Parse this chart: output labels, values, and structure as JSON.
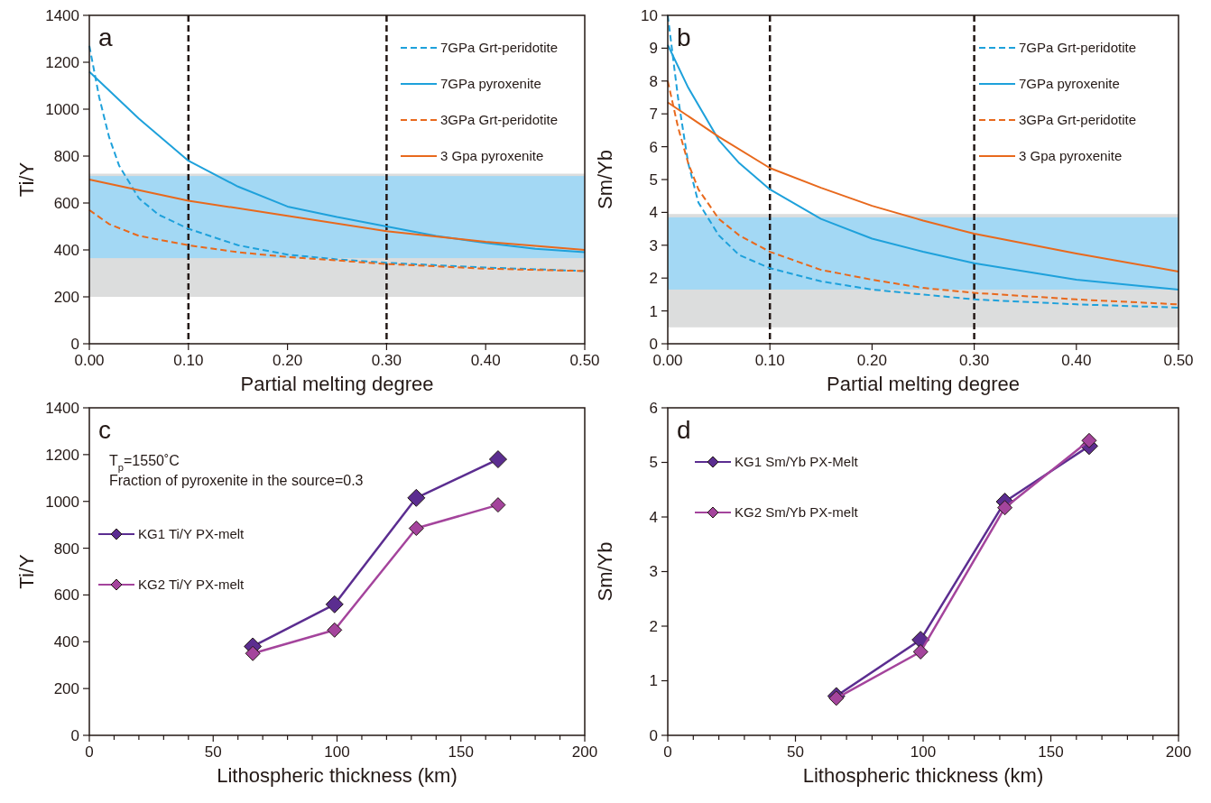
{
  "chart_data": [
    {
      "type": "line",
      "ylabel": "Ti/Y",
      "xlabel": "Partial melting degree",
      "annotations": [
        "a"
      ],
      "legend": "top right",
      "grid": false,
      "marker": "none",
      "xlim": [
        0,
        0.5
      ],
      "xticks": [
        {
          "value": 0,
          "label": "0.00"
        },
        {
          "value": 0.1,
          "label": "0.10"
        },
        {
          "value": 0.2,
          "label": "0.20"
        },
        {
          "value": 0.3,
          "label": "0.30"
        },
        {
          "value": 0.4,
          "label": "0.40"
        },
        {
          "value": 0.5,
          "label": "0.50"
        }
      ],
      "ylim": [
        0,
        1400
      ],
      "yticks": [
        0,
        200,
        400,
        600,
        800,
        1000,
        1200,
        1400
      ],
      "bands": [
        {
          "axis": "y",
          "from": 200,
          "to": 725,
          "color": "#dcdddd"
        },
        {
          "axis": "y",
          "from": 365,
          "to": 715,
          "color": "#a3d8f4"
        }
      ],
      "ref_lines": [
        {
          "axis": "x",
          "value": 0.1,
          "color": "#231815",
          "line_style": "dashed"
        },
        {
          "axis": "x",
          "value": 0.3,
          "color": "#231815",
          "line_style": "dashed"
        }
      ],
      "series": [
        {
          "name": "7GPa Grt-peridotite",
          "color": "#1ea1db",
          "line_style": "dashed",
          "x": [
            0,
            0.01,
            0.02,
            0.03,
            0.05,
            0.07,
            0.1,
            0.15,
            0.2,
            0.25,
            0.3,
            0.4,
            0.5
          ],
          "values": [
            1270,
            1050,
            880,
            760,
            620,
            550,
            490,
            420,
            380,
            360,
            345,
            325,
            310
          ]
        },
        {
          "name": "7GPa pyroxenite",
          "color": "#1ea1db",
          "line_style": "solid",
          "x": [
            0,
            0.05,
            0.1,
            0.15,
            0.2,
            0.25,
            0.3,
            0.35,
            0.4,
            0.45,
            0.5
          ],
          "values": [
            1160,
            960,
            780,
            670,
            585,
            540,
            500,
            460,
            430,
            405,
            390
          ]
        },
        {
          "name": "3GPa Grt-peridotite",
          "color": "#e8691d",
          "line_style": "dashed",
          "x": [
            0,
            0.02,
            0.05,
            0.1,
            0.15,
            0.2,
            0.25,
            0.3,
            0.4,
            0.5
          ],
          "values": [
            570,
            510,
            460,
            420,
            390,
            370,
            355,
            340,
            320,
            310
          ]
        },
        {
          "name": "3 Gpa pyroxenite",
          "color": "#e8691d",
          "line_style": "solid",
          "x": [
            0,
            0.1,
            0.2,
            0.3,
            0.4,
            0.5
          ],
          "values": [
            700,
            610,
            545,
            480,
            435,
            400
          ]
        }
      ]
    },
    {
      "type": "line",
      "ylabel": "Sm/Yb",
      "xlabel": "Partial melting degree",
      "annotations": [
        "b"
      ],
      "legend": "top right",
      "grid": false,
      "marker": "none",
      "xlim": [
        0,
        0.5
      ],
      "xticks": [
        {
          "value": 0,
          "label": "0.00"
        },
        {
          "value": 0.1,
          "label": "0.10"
        },
        {
          "value": 0.2,
          "label": "0.20"
        },
        {
          "value": 0.3,
          "label": "0.30"
        },
        {
          "value": 0.4,
          "label": "0.40"
        },
        {
          "value": 0.5,
          "label": "0.50"
        }
      ],
      "ylim": [
        0,
        10
      ],
      "yticks": [
        0,
        1,
        2,
        3,
        4,
        5,
        6,
        7,
        8,
        9,
        10
      ],
      "bands": [
        {
          "axis": "y",
          "from": 0.5,
          "to": 3.95,
          "color": "#dcdddd"
        },
        {
          "axis": "y",
          "from": 1.65,
          "to": 3.85,
          "color": "#a3d8f4"
        }
      ],
      "ref_lines": [
        {
          "axis": "x",
          "value": 0.1,
          "color": "#231815",
          "line_style": "dashed"
        },
        {
          "axis": "x",
          "value": 0.3,
          "color": "#231815",
          "line_style": "dashed"
        }
      ],
      "series": [
        {
          "name": "7GPa Grt-peridotite",
          "color": "#1ea1db",
          "line_style": "dashed",
          "x": [
            0,
            0.01,
            0.02,
            0.03,
            0.05,
            0.07,
            0.1,
            0.15,
            0.2,
            0.25,
            0.3,
            0.4,
            0.5
          ],
          "values": [
            10,
            7.5,
            5.5,
            4.3,
            3.3,
            2.7,
            2.3,
            1.9,
            1.65,
            1.5,
            1.35,
            1.2,
            1.1
          ]
        },
        {
          "name": "7GPa pyroxenite",
          "color": "#1ea1db",
          "line_style": "solid",
          "x": [
            0,
            0.02,
            0.05,
            0.07,
            0.1,
            0.15,
            0.2,
            0.25,
            0.3,
            0.4,
            0.5
          ],
          "values": [
            9.1,
            7.8,
            6.2,
            5.5,
            4.7,
            3.8,
            3.2,
            2.8,
            2.45,
            1.95,
            1.65
          ]
        },
        {
          "name": "3GPa Grt-peridotite",
          "color": "#e8691d",
          "line_style": "dashed",
          "x": [
            0,
            0.01,
            0.02,
            0.03,
            0.05,
            0.07,
            0.1,
            0.15,
            0.2,
            0.25,
            0.3,
            0.4,
            0.5
          ],
          "values": [
            8,
            6.6,
            5.5,
            4.7,
            3.8,
            3.3,
            2.8,
            2.25,
            1.95,
            1.7,
            1.55,
            1.35,
            1.2
          ]
        },
        {
          "name": "3 Gpa pyroxenite",
          "color": "#e8691d",
          "line_style": "solid",
          "x": [
            0,
            0.05,
            0.1,
            0.15,
            0.2,
            0.25,
            0.3,
            0.4,
            0.5
          ],
          "values": [
            7.35,
            6.3,
            5.35,
            4.75,
            4.2,
            3.75,
            3.35,
            2.75,
            2.2
          ]
        }
      ]
    },
    {
      "type": "line",
      "ylabel": "Ti/Y",
      "xlabel": "Lithospheric thickness (km)",
      "annotations": [
        "c",
        "T$_{p}$=1550˚C",
        "Fraction of pyroxenite in the source=0.3"
      ],
      "legend": "left",
      "grid": false,
      "marker": "diamond",
      "xlim": [
        0,
        200
      ],
      "xticks": [
        0,
        {
          "value": 10,
          "label": null
        },
        {
          "value": 20,
          "label": null
        },
        {
          "value": 30,
          "label": null
        },
        {
          "value": 40,
          "label": null
        },
        50,
        {
          "value": 60,
          "label": null
        },
        {
          "value": 70,
          "label": null
        },
        {
          "value": 80,
          "label": null
        },
        {
          "value": 90,
          "label": null
        },
        100,
        {
          "value": 110,
          "label": null
        },
        {
          "value": 120,
          "label": null
        },
        {
          "value": 130,
          "label": null
        },
        {
          "value": 140,
          "label": null
        },
        150,
        {
          "value": 160,
          "label": null
        },
        {
          "value": 170,
          "label": null
        },
        {
          "value": 180,
          "label": null
        },
        {
          "value": 190,
          "label": null
        },
        200
      ],
      "ylim": [
        0,
        1400
      ],
      "yticks": [
        0,
        200,
        400,
        600,
        800,
        1000,
        1200,
        1400
      ],
      "series": [
        {
          "name": "KG1 Ti/Y PX-melt",
          "color": "#5b2d90",
          "x": [
            66,
            99,
            132,
            165
          ],
          "values": [
            380,
            560,
            1015,
            1180
          ]
        },
        {
          "name": "KG2 Ti/Y PX-melt",
          "color": "#a4449c",
          "x": [
            66,
            99,
            132,
            165
          ],
          "values": [
            350,
            450,
            885,
            985
          ]
        }
      ]
    },
    {
      "type": "line",
      "ylabel": "Sm/Yb",
      "xlabel": "Lithospheric thickness (km)",
      "annotations": [
        "d"
      ],
      "legend": "top left",
      "grid": false,
      "marker": "diamond",
      "xlim": [
        0,
        200
      ],
      "xticks": [
        0,
        {
          "value": 10,
          "label": null
        },
        {
          "value": 20,
          "label": null
        },
        {
          "value": 30,
          "label": null
        },
        {
          "value": 40,
          "label": null
        },
        50,
        {
          "value": 60,
          "label": null
        },
        {
          "value": 70,
          "label": null
        },
        {
          "value": 80,
          "label": null
        },
        {
          "value": 90,
          "label": null
        },
        100,
        {
          "value": 110,
          "label": null
        },
        {
          "value": 120,
          "label": null
        },
        {
          "value": 130,
          "label": null
        },
        {
          "value": 140,
          "label": null
        },
        150,
        {
          "value": 160,
          "label": null
        },
        {
          "value": 170,
          "label": null
        },
        {
          "value": 180,
          "label": null
        },
        {
          "value": 190,
          "label": null
        },
        200
      ],
      "ylim": [
        0,
        6
      ],
      "yticks": [
        0,
        1,
        2,
        3,
        4,
        5,
        6
      ],
      "series": [
        {
          "name": "KG1 Sm/Yb PX-Melt",
          "color": "#5b2d90",
          "x": [
            66,
            99,
            132,
            165
          ],
          "values": [
            0.72,
            1.75,
            4.28,
            5.3
          ]
        },
        {
          "name": "KG2 Sm/Yb PX-melt",
          "color": "#a4449c",
          "x": [
            66,
            99,
            132,
            165
          ],
          "values": [
            0.68,
            1.53,
            4.17,
            5.4
          ]
        }
      ]
    }
  ]
}
